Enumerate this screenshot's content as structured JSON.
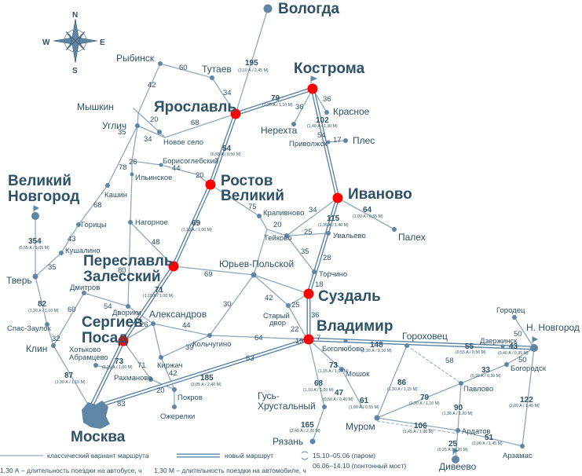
{
  "compass": {
    "n": "N",
    "s": "S",
    "w": "W",
    "e": "E"
  },
  "cities": {
    "vologda": "Вологда",
    "kostroma": "Кострома",
    "yaroslavl": "Ярославль",
    "rybinsk": "Рыбинск",
    "tutaev": "Тутаев",
    "myshkin": "Мышкин",
    "uglich": "Углич",
    "novoe_selo": "Новое село",
    "nerekhta": "Нерехта",
    "krasnoe": "Красное",
    "privolzhsk": "Приволжск",
    "ples": "Плес",
    "borisoglebsky": "Борисоглебский",
    "ilyinskoe": "Ильинское",
    "rostov": "Ростов\nВеликий",
    "ivanovo": "Иваново",
    "kashin": "Кашин",
    "velikiy_novgorod": "Великий\nНовгород",
    "goritsy": "Горицы",
    "krapivnovo": "Крапивново",
    "teykovo": "Тейково",
    "uvalyevo": "Увальево",
    "palekh": "Палех",
    "kushalino": "Кушалино",
    "tver": "Тверь",
    "nagornoe": "Нагорное",
    "pereslavl": "Переславль\nЗалесский",
    "yuryev": "Юрьев-Польской",
    "torchino": "Торчино",
    "suzdal": "Суздаль",
    "dmitrov": "Дмитров",
    "dvoriki": "Дворики",
    "sergiev": "Сергиев\nПосад",
    "aleksandrov": "Александров",
    "staryy_dvor": "Старый\nдвор",
    "vladimir": "Владимир",
    "gorokhovets": "Гороховец",
    "gorodets": "Городец",
    "n_novgorod": "Н. Новгород",
    "dzerzhinsk": "Дзержинск",
    "bogolyubovo": "Боголюбово",
    "bogorodsk": "Богородск",
    "spas_zaulok": "Спас-Заулок",
    "klin": "Клин",
    "khotkovo": "Хотьково",
    "abramtsevo": "Абрамцево",
    "kolchugino": "Кольчугино",
    "kirzhach": "Киржач",
    "rakhmanovo": "Рахманово",
    "pokrov": "Покров",
    "ozherelki": "Ожерелки",
    "mashok": "Мошок",
    "pavlovo": "Павлово",
    "gus": "Гусь-\nХрустальный",
    "murom": "Муром",
    "ardatov": "Ардатов",
    "ryazan": "Рязань",
    "moskva": "Москва",
    "diveevo": "Дивеево",
    "arzamas": "Арзамас"
  },
  "distances": {
    "d195": "195",
    "d195s": "(3,10 А / 2,45 М)",
    "d60": "60",
    "d34a": "34",
    "d42a": "42",
    "d79": "79",
    "d79s": "(1,20 А / 1,10 М)",
    "d36a": "36",
    "d36b": "36",
    "d20a": "20",
    "d68a": "68",
    "d35a": "35",
    "d34b": "34",
    "d102": "102",
    "d102s": "(1,40 А / 1,30 М)",
    "d54a": "54",
    "d17": "17",
    "d54": "54",
    "d54s": "(0,55 А / 0,50 М)",
    "d26a": "26",
    "d44a": "44",
    "d20b": "20",
    "d78": "78",
    "d68b": "68",
    "d75": "75",
    "d34c": "34",
    "d64a": "64",
    "d64s": "(1,00 А / 0,55 М)",
    "d115": "115",
    "d115s": "(1,35 А / 1,40 М)",
    "d20c": "20",
    "d25a": "25",
    "d35b": "35",
    "d28": "28",
    "d354": "354",
    "d354s": "(5,55 А / 5,05 М)",
    "d43": "43",
    "d35c": "35",
    "d69": "69",
    "d69s": "(1,10 А / 1,00 М)",
    "d48": "48",
    "d80": "80",
    "d69b": "69",
    "d18": "18",
    "d71": "71",
    "d71s": "(1,10 А / 1,00 М)",
    "d82": "82",
    "d82s": "(1,20 А / 1,10 М)",
    "d60b": "60",
    "d54b": "54",
    "d30": "30",
    "d42b": "42",
    "d25b": "25",
    "d22": "22",
    "d36c": "36",
    "d19": "19",
    "d7": "7",
    "d148": "148",
    "d148s": "(2,30 А / 2,10 М)",
    "d55": "55",
    "d55s": "(0,55 А / 0,50 М)",
    "d43b": "43",
    "d43bs": "(0,40 А / 0,35 М)",
    "d50a": "50",
    "d50b": "50",
    "d32": "32",
    "d26b": "26",
    "d44b": "44",
    "d64b": "64",
    "d39": "39",
    "d73": "73",
    "d73s": "(1,15 А / 1,00 М)",
    "d73b": "73",
    "d73bs": "(1,15 А / 1,00 М)",
    "d86": "86",
    "d86s": "(1,30 А / 1,15 М)",
    "d58": "58",
    "d33": "33",
    "d33s": "(0,30 А / 0,30 М)",
    "d87": "87",
    "d87s": "(1,30 А / 1,15 М)",
    "d71b": "71",
    "d42c": "42",
    "d185": "185",
    "d185s": "(3,05 А / 2,40 М)",
    "d63": "63",
    "d68c": "68",
    "d68cs": "(1,10 А / 1,00 М)",
    "d47": "47",
    "d47s": "(0,50 А / 0,40 М)",
    "d61": "61",
    "d61s": "(1,00 А / 0,55 М)",
    "d79b": "79",
    "d79bs": "(1,20 А / 1,10 М)",
    "d122": "122",
    "d122s": "(2,00 А / 1,45 М)",
    "d20d": "20",
    "d83": "83",
    "d90": "90",
    "d90s": "(1,30 А / 1,20 М)",
    "d106": "106",
    "d106s": "(1,45 А / 1,30 М)",
    "d165": "165",
    "d165s": "(2,45 А / 2,20 М)",
    "d51": "51",
    "d51s": "(2,00 А / 1,45 М)",
    "d25c": "25",
    "d25cs": "(0,25 А / 0,20 М)"
  },
  "legend": {
    "classic": "классический вариант маршрута",
    "new": "новый маршрут",
    "ferry": "15.10–05.06 (паром)",
    "pontoon": "06.06–14.10 (понтонный мост)",
    "bus": "1,30 А – длительность поездки на автобусе, ч",
    "car": "1,30 М – длительность поездки на автомобиле, ч"
  },
  "colors": {
    "road": "#8ea9bf",
    "road_dark": "#5f86a4",
    "node": "#5f86a4",
    "key_city": "#ff0000",
    "label": "#2e5167"
  }
}
